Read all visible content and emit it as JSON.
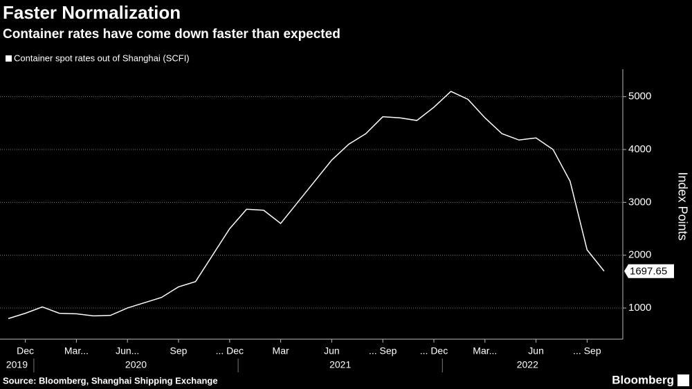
{
  "chart_data": {
    "type": "line",
    "title": "Faster Normalization",
    "subtitle": "Container rates have come down faster than expected",
    "source": "Source: Bloomberg, Shanghai Shipping Exchange",
    "brand": "Bloomberg",
    "y_axis_label": "Index Points",
    "x": [
      "2019-11",
      "2019-12",
      "2020-01",
      "2020-02",
      "2020-03",
      "2020-04",
      "2020-05",
      "2020-06",
      "2020-07",
      "2020-08",
      "2020-09",
      "2020-10",
      "2020-11",
      "2020-12",
      "2021-01",
      "2021-02",
      "2021-03",
      "2021-04",
      "2021-05",
      "2021-06",
      "2021-07",
      "2021-08",
      "2021-09",
      "2021-10",
      "2021-11",
      "2021-12",
      "2022-01",
      "2022-02",
      "2022-03",
      "2022-04",
      "2022-05",
      "2022-06",
      "2022-07",
      "2022-08",
      "2022-09",
      "2022-10"
    ],
    "series": [
      {
        "name": "Container spot rates out of Shanghai (SCFI)",
        "color": "#ffffff",
        "values": [
          800,
          900,
          1020,
          900,
          890,
          850,
          860,
          1000,
          1100,
          1200,
          1400,
          1500,
          2000,
          2500,
          2870,
          2850,
          2600,
          3000,
          3400,
          3800,
          4100,
          4300,
          4620,
          4600,
          4550,
          4800,
          5100,
          4950,
          4600,
          4300,
          4180,
          4220,
          4000,
          3400,
          2100,
          1697.65
        ],
        "last_label": "1697.65"
      }
    ],
    "ylim": [
      410,
      5520
    ],
    "yticks": [
      1000,
      2000,
      3000,
      4000,
      5000
    ],
    "xticks": [
      {
        "value": "2019-12",
        "label": "Dec"
      },
      {
        "value": "2020-03",
        "label": "Mar..."
      },
      {
        "value": "2020-06",
        "label": "Jun..."
      },
      {
        "value": "2020-09",
        "label": "Sep"
      },
      {
        "value": "2020-12",
        "label": "... Dec"
      },
      {
        "value": "2021-03",
        "label": "Mar"
      },
      {
        "value": "2021-06",
        "label": "Jun"
      },
      {
        "value": "2021-09",
        "label": "... Sep"
      },
      {
        "value": "2021-12",
        "label": "... Dec"
      },
      {
        "value": "2022-03",
        "label": "Mar..."
      },
      {
        "value": "2022-06",
        "label": "Jun"
      },
      {
        "value": "2022-09",
        "label": "... Sep"
      }
    ],
    "years": [
      "2019",
      "2020",
      "2021",
      "2022"
    ],
    "grid": true,
    "axis_side": "right"
  }
}
